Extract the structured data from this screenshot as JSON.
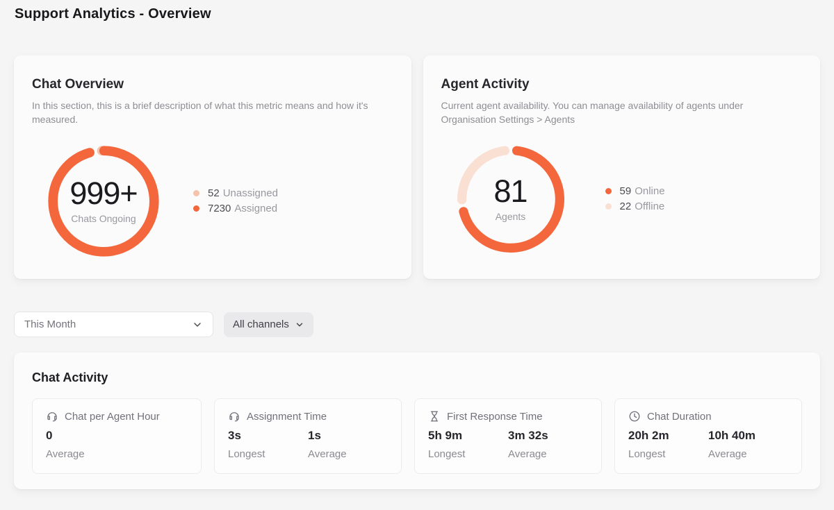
{
  "page": {
    "title": "Support Analytics - Overview"
  },
  "colors": {
    "accent_orange": "#F4673C",
    "light_peach": "#F5C3AC",
    "pale_peach": "#FADFD3"
  },
  "cards": {
    "chat_overview": {
      "title": "Chat Overview",
      "description": "In this section, this is a brief description of what this metric means and how it's measured.",
      "center_value": "999+",
      "center_label": "Chats Ongoing",
      "legend": [
        {
          "value": "52",
          "label": "Unassigned",
          "color": "#F5C3AC"
        },
        {
          "value": "7230",
          "label": "Assigned",
          "color": "#F4673C"
        }
      ]
    },
    "agent_activity": {
      "title": "Agent Activity",
      "description": "Current agent availability. You can manage availability of agents under Organisation Settings > Agents",
      "center_value": "81",
      "center_label": "Agents",
      "legend": [
        {
          "value": "59",
          "label": "Online",
          "color": "#F4673C"
        },
        {
          "value": "22",
          "label": "Offline",
          "color": "#FADFD3"
        }
      ]
    }
  },
  "filters": {
    "time_range": {
      "value": "This Month"
    },
    "channel": {
      "value": "All channels"
    }
  },
  "chat_activity": {
    "title": "Chat Activity",
    "metrics": [
      {
        "icon": "headset-icon",
        "title": "Chat per Agent Hour",
        "stats": [
          {
            "value": "0",
            "label": "Average"
          }
        ]
      },
      {
        "icon": "headset-icon",
        "title": "Assignment Time",
        "stats": [
          {
            "value": "3s",
            "label": "Longest"
          },
          {
            "value": "1s",
            "label": "Average"
          }
        ]
      },
      {
        "icon": "hourglass-icon",
        "title": "First Response Time",
        "stats": [
          {
            "value": "5h 9m",
            "label": "Longest"
          },
          {
            "value": "3m 32s",
            "label": "Average"
          }
        ]
      },
      {
        "icon": "clock-icon",
        "title": "Chat Duration",
        "stats": [
          {
            "value": "20h 2m",
            "label": "Longest"
          },
          {
            "value": "10h 40m",
            "label": "Average"
          }
        ]
      }
    ]
  },
  "chart_data": [
    {
      "type": "pie",
      "variant": "donut",
      "title": "Chat Overview",
      "center_value": "999+",
      "center_label": "Chats Ongoing",
      "segments": [
        {
          "name": "Unassigned",
          "value": 52,
          "color": "#F5C3AC"
        },
        {
          "name": "Assigned",
          "value": 7230,
          "color": "#F4673C"
        }
      ],
      "layout": {
        "rotation_offset_deg": -9,
        "legend_position": "right",
        "start_at": "top",
        "direction": "clockwise"
      }
    },
    {
      "type": "pie",
      "variant": "donut",
      "title": "Agent Activity",
      "center_value": "81",
      "center_label": "Agents",
      "segments": [
        {
          "name": "Online",
          "value": 59,
          "color": "#F4673C"
        },
        {
          "name": "Offline",
          "value": 22,
          "color": "#FADFD3"
        }
      ],
      "layout": {
        "rotation_offset_deg": 0,
        "legend_position": "right",
        "start_at": "top",
        "direction": "clockwise"
      }
    }
  ]
}
